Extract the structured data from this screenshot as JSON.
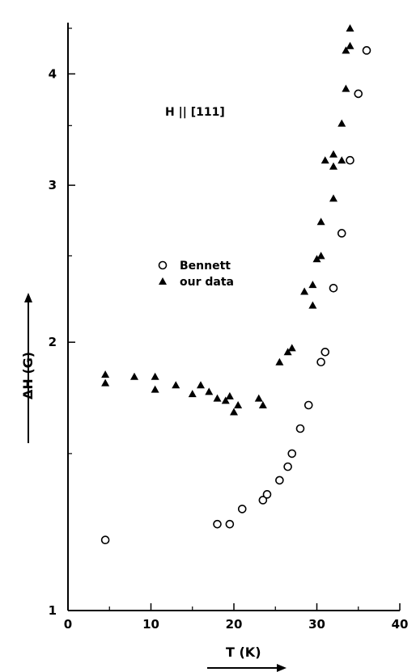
{
  "chart_data": {
    "type": "scatter",
    "annotation": "H || [111]",
    "xlabel": "T (K)",
    "ylabel": "ΔH (G)",
    "xlim": [
      0,
      40
    ],
    "ylim": [
      1,
      4.5
    ],
    "y_scale": "log",
    "x_ticks": [
      0,
      10,
      20,
      30,
      40
    ],
    "x_tick_labels": [
      "0",
      "10",
      "20",
      "30",
      "40"
    ],
    "y_ticks": [
      1,
      2,
      3,
      4
    ],
    "y_tick_labels": [
      "1",
      "2",
      "3",
      "4"
    ],
    "grid": false,
    "legend_position": "center-left",
    "series": [
      {
        "name": "Bennett",
        "marker": "open-circle",
        "x": [
          4.5,
          18,
          19.5,
          21,
          23.5,
          24,
          25.5,
          26.5,
          27,
          28,
          29,
          30.5,
          31,
          32,
          33,
          34,
          35,
          36
        ],
        "y": [
          1.2,
          1.25,
          1.25,
          1.3,
          1.33,
          1.35,
          1.4,
          1.45,
          1.5,
          1.6,
          1.7,
          1.9,
          1.95,
          2.3,
          2.65,
          3.2,
          3.8,
          4.25
        ]
      },
      {
        "name": "our data",
        "marker": "filled-triangle",
        "x": [
          4.5,
          4.5,
          8,
          10.5,
          10.5,
          13,
          15,
          16,
          17,
          18,
          19,
          19.5,
          20,
          20.5,
          23,
          23.5,
          25.5,
          26.5,
          27,
          28.5,
          29.5,
          29.5,
          30,
          30.5,
          30.5,
          31,
          32,
          32,
          32,
          33,
          33,
          33.5,
          33.5,
          34,
          34
        ],
        "y": [
          1.84,
          1.8,
          1.83,
          1.83,
          1.77,
          1.79,
          1.75,
          1.79,
          1.76,
          1.73,
          1.72,
          1.74,
          1.67,
          1.7,
          1.73,
          1.7,
          1.9,
          1.95,
          1.97,
          2.28,
          2.32,
          2.2,
          2.48,
          2.5,
          2.73,
          3.2,
          2.9,
          3.15,
          3.25,
          3.2,
          3.52,
          3.85,
          4.25,
          4.3,
          4.5
        ]
      }
    ]
  }
}
